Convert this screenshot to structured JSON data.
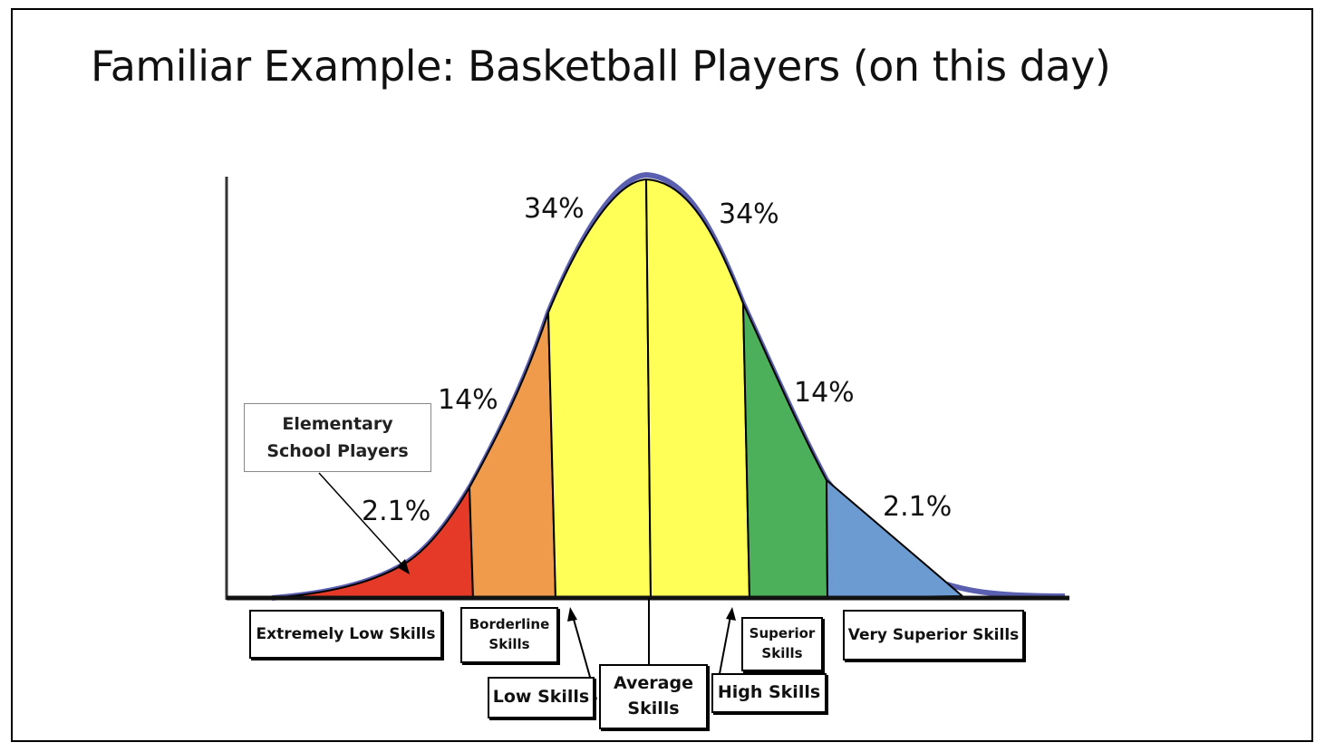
{
  "slide": {
    "title": "Familiar Example: Basketball Players (on this day)"
  },
  "segments": [
    {
      "key": "extremely-low",
      "percent_label": "2.1%",
      "category": "Extremely Low Skills",
      "color": "#e53a28"
    },
    {
      "key": "borderline",
      "percent_label": "14%",
      "category": "Borderline Skills",
      "color": "#f09a4c"
    },
    {
      "key": "low",
      "percent_label": "34%",
      "category": "Low Skills",
      "color": "#ffff57"
    },
    {
      "key": "high",
      "percent_label": "34%",
      "category": "High Skills",
      "color": "#ffff57"
    },
    {
      "key": "superior",
      "percent_label": "14%",
      "category": "Superior Skills",
      "color": "#4caf5a"
    },
    {
      "key": "very-superior",
      "percent_label": "2.1%",
      "category": "Very Superior Skills",
      "color": "#6b9bd1"
    }
  ],
  "labels": {
    "extremely_low": "Extremely Low Skills",
    "borderline_1": "Borderline",
    "borderline_2": "Skills",
    "low": "Low Skills",
    "average_1": "Average",
    "average_2": "Skills",
    "high": "High Skills",
    "superior_1": "Superior",
    "superior_2": "Skills",
    "very_superior": "Very Superior  Skills"
  },
  "percent_labels": {
    "left_tail": "2.1%",
    "left_mid": "14%",
    "left_center": "34%",
    "right_center": "34%",
    "right_mid": "14%",
    "right_tail": "2.1%"
  },
  "callout": {
    "line1": "Elementary",
    "line2": "School Players"
  },
  "colors": {
    "curve_outline": "#5a5fb0",
    "red": "#e53a28",
    "orange": "#f09a4c",
    "yellow": "#ffff57",
    "green": "#4caf5a",
    "blue": "#6b9bd1"
  }
}
